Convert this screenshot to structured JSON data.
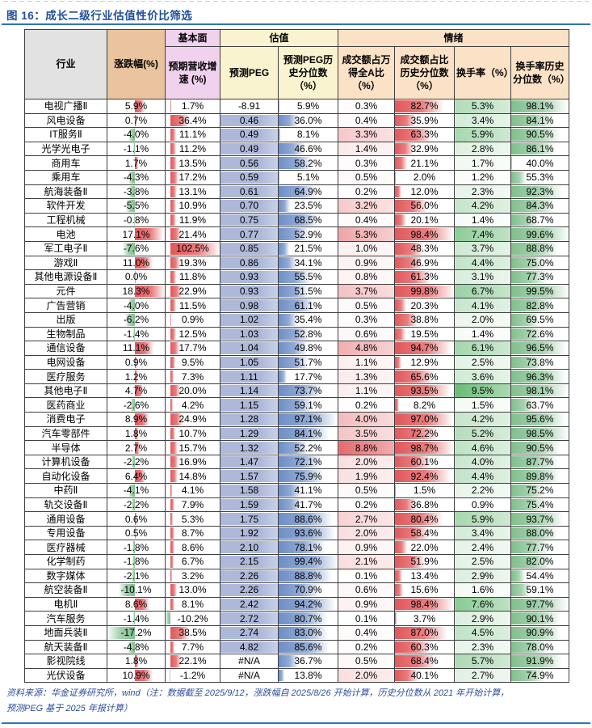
{
  "title": "图 16：成长二级行业估值性价比筛选",
  "header": {
    "industry": "行业",
    "change": "涨跌幅(%)",
    "groups": [
      "基本面",
      "估值",
      "情绪"
    ],
    "cols": [
      "预期营收增速 (%)",
      "预测PEG",
      "预测PEG历史分位数（%）",
      "成交额占万得全A比（%）",
      "成交额占比历史分位数（%）",
      "换手率（%）",
      "换手率历史分位数（%）"
    ]
  },
  "colors": {
    "title_blue": "#1f4e9a",
    "rule_blue": "#2e74b5",
    "footer_blue": "#2e4d9b",
    "header_gray": "#e2e2e2",
    "header_tan": "#eac49e",
    "header_pink": "#f0d1ee",
    "header_yellow": "#faf3cf",
    "header_peach": "#fbe2c6",
    "bar_red": "#e1585b",
    "bar_blue": "#6e8ec7",
    "bar_green": "#82bf8e",
    "peg_fill": "#aeb9da",
    "scale_red_max": "#e5696c",
    "scale_green_max": "#68bb76"
  },
  "table": {
    "columns": [
      "行业",
      "涨跌幅(%)",
      "预期营收增速(%)",
      "预测PEG",
      "预测PEG历史分位数(%)",
      "成交额占万得全A比(%)",
      "成交额占比历史分位数(%)",
      "换手率(%)",
      "换手率历史分位数(%)"
    ],
    "rows": [
      [
        "电视广播Ⅱ",
        5.9,
        1.7,
        "-8.91",
        5.9,
        0.3,
        82.7,
        5.3,
        98.1
      ],
      [
        "风电设备",
        0.7,
        36.4,
        "0.46",
        36.0,
        0.4,
        35.9,
        3.4,
        84.1
      ],
      [
        "IT服务Ⅱ",
        -4.0,
        11.1,
        "0.49",
        8.1,
        3.3,
        63.3,
        5.9,
        90.5
      ],
      [
        "光学光电子",
        -1.1,
        11.2,
        "0.49",
        46.6,
        1.4,
        32.9,
        2.8,
        86.1
      ],
      [
        "商用车",
        1.7,
        13.5,
        "0.56",
        58.2,
        0.3,
        21.1,
        1.7,
        40.0
      ],
      [
        "乘用车",
        -4.3,
        17.2,
        "0.59",
        5.1,
        0.5,
        2.0,
        1.2,
        55.3
      ],
      [
        "航海装备Ⅱ",
        -3.8,
        13.1,
        "0.61",
        64.9,
        0.2,
        12.0,
        2.3,
        92.3
      ],
      [
        "软件开发",
        -5.5,
        10.9,
        "0.70",
        23.5,
        3.2,
        56.0,
        4.2,
        84.3
      ],
      [
        "工程机械",
        -0.8,
        11.9,
        "0.75",
        68.5,
        0.4,
        20.1,
        1.4,
        68.7
      ],
      [
        "电池",
        17.1,
        21.4,
        "0.77",
        52.9,
        5.3,
        98.4,
        7.4,
        99.6
      ],
      [
        "军工电子Ⅱ",
        -7.6,
        102.5,
        "0.85",
        21.5,
        1.0,
        48.3,
        3.7,
        88.8
      ],
      [
        "游戏Ⅱ",
        11.0,
        19.3,
        "0.86",
        34.1,
        0.9,
        46.9,
        4.4,
        75.0
      ],
      [
        "其他电源设备Ⅱ",
        0.0,
        11.8,
        "0.93",
        55.5,
        0.8,
        61.3,
        3.1,
        77.3
      ],
      [
        "元件",
        18.3,
        22.9,
        "0.93",
        51.5,
        3.7,
        99.8,
        6.7,
        99.5
      ],
      [
        "广告营销",
        -4.0,
        11.5,
        "0.98",
        61.1,
        0.5,
        20.3,
        4.1,
        82.8
      ],
      [
        "出版",
        -6.2,
        0.9,
        "1.02",
        35.4,
        0.3,
        38.8,
        2.0,
        69.5
      ],
      [
        "生物制品",
        -1.4,
        12.5,
        "1.03",
        52.8,
        0.6,
        19.5,
        1.4,
        72.6
      ],
      [
        "通信设备",
        11.1,
        17.7,
        "1.04",
        49.8,
        4.8,
        94.7,
        6.1,
        96.5
      ],
      [
        "电网设备",
        0.9,
        9.5,
        "1.05",
        51.7,
        1.1,
        12.9,
        2.5,
        73.8
      ],
      [
        "医疗服务",
        1.2,
        7.3,
        "1.11",
        17.7,
        1.3,
        65.6,
        3.6,
        96.3
      ],
      [
        "其他电子Ⅱ",
        4.7,
        20.0,
        "1.14",
        73.7,
        1.1,
        93.5,
        9.5,
        98.1
      ],
      [
        "医药商业",
        -2.6,
        4.2,
        "1.15",
        59.1,
        0.2,
        8.2,
        1.5,
        63.7
      ],
      [
        "消费电子",
        8.9,
        24.9,
        "1.28",
        97.1,
        4.0,
        97.0,
        4.2,
        95.6
      ],
      [
        "汽车零部件",
        1.8,
        10.7,
        "1.29",
        84.1,
        3.5,
        72.2,
        5.2,
        98.5
      ],
      [
        "半导体",
        2.7,
        15.7,
        "1.32",
        52.2,
        8.8,
        98.7,
        4.6,
        90.5
      ],
      [
        "计算机设备",
        -2.2,
        16.9,
        "1.47",
        72.1,
        2.0,
        60.1,
        4.0,
        87.7
      ],
      [
        "自动化设备",
        6.4,
        14.8,
        "1.57",
        75.9,
        1.9,
        92.4,
        4.4,
        89.8
      ],
      [
        "中药Ⅱ",
        -4.1,
        4.1,
        "1.58",
        41.1,
        0.5,
        1.5,
        2.2,
        75.2
      ],
      [
        "轨交设备Ⅱ",
        -2.2,
        7.9,
        "1.59",
        41.7,
        0.2,
        36.8,
        0.9,
        75.4
      ],
      [
        "通用设备",
        0.6,
        5.3,
        "1.75",
        88.6,
        2.7,
        80.4,
        5.9,
        93.7
      ],
      [
        "专用设备",
        0.5,
        8.7,
        "1.92",
        93.6,
        2.0,
        58.4,
        3.4,
        88.0
      ],
      [
        "医疗器械",
        -1.8,
        8.6,
        "2.10",
        78.1,
        0.9,
        22.0,
        2.4,
        77.7
      ],
      [
        "化学制药",
        -1.8,
        6.7,
        "2.15",
        99.4,
        2.1,
        51.9,
        2.5,
        82.0
      ],
      [
        "数字媒体",
        -2.1,
        3.2,
        "2.26",
        88.8,
        0.1,
        13.4,
        2.9,
        54.4
      ],
      [
        "航空装备Ⅱ",
        -10.1,
        13.0,
        "2.26",
        70.9,
        0.6,
        15.6,
        1.6,
        59.1
      ],
      [
        "电机Ⅱ",
        8.6,
        8.1,
        "2.42",
        94.2,
        0.9,
        98.4,
        7.6,
        97.7
      ],
      [
        "汽车服务",
        -1.4,
        -10.2,
        "2.72",
        80.7,
        0.1,
        3.7,
        2.9,
        90.1
      ],
      [
        "地面兵装Ⅱ",
        -17.2,
        38.5,
        "2.74",
        83.0,
        0.4,
        87.0,
        4.5,
        90.9
      ],
      [
        "航天装备Ⅱ",
        -4.8,
        7.7,
        "4.82",
        85.6,
        0.2,
        60.3,
        2.3,
        78.0
      ],
      [
        "影视院线",
        1.8,
        22.1,
        "#N/A",
        36.7,
        0.5,
        68.4,
        5.7,
        91.9
      ],
      [
        "光伏设备",
        10.9,
        -1.2,
        "#N/A",
        13.8,
        2.0,
        40.1,
        2.7,
        74.9
      ]
    ]
  },
  "footer": {
    "line1": "资料来源：华金证券研究所，wind（注：数据截至 2025/9/12，涨跌幅自 2025/8/26 开始计算，历史分位数从 2021 年开始计算，",
    "line2": "预测PEG 基于 2025 年报计算）"
  }
}
